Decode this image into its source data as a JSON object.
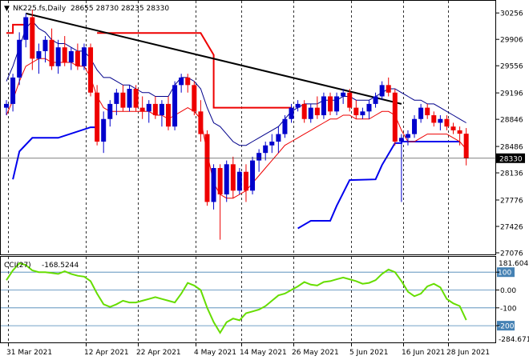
{
  "header": {
    "symbol": "NK225.fs,Daily",
    "ohlc_values": "28655 28730 28235 28330"
  },
  "indicator": {
    "label": "CCI(27)",
    "value": "-168.5244",
    "scale_top": "181.6041",
    "scale_bottom": "-284.6713"
  },
  "colors": {
    "bull_candle": "#0000cc",
    "bear_candle": "#ee0000",
    "upper_band": "#00008b",
    "lower_band": "#ee0000",
    "trendline": "#000000",
    "resistance": "#ee0000",
    "support": "#0000ee",
    "cci_line": "#66dd00",
    "price_tag_bg": "#000000"
  },
  "chart_data": [
    {
      "type": "candlestick",
      "title": "NK225.fs,Daily",
      "ylim": [
        27076,
        30396
      ],
      "y_ticks": [
        "30256",
        "29906",
        "29556",
        "29196",
        "28846",
        "28486",
        "28136",
        "27776",
        "27426",
        "27076"
      ],
      "x_tick_labels": [
        "31 Mar 2021",
        "12 Apr 2021",
        "22 Apr 2021",
        "4 May 2021",
        "14 May 2021",
        "26 May 2021",
        "5 Jun 2021",
        "16 Jun 2021",
        "28 Jun 2021"
      ],
      "last_price": "28330",
      "candles": [
        [
          29000,
          29100,
          28900,
          29050
        ],
        [
          29050,
          29450,
          28950,
          29400
        ],
        [
          29400,
          30000,
          29300,
          29900
        ],
        [
          29900,
          30250,
          29800,
          30200
        ],
        [
          30200,
          30300,
          29500,
          29650
        ],
        [
          29650,
          29850,
          29450,
          29750
        ],
        [
          29750,
          29950,
          29600,
          29900
        ],
        [
          29900,
          30050,
          29500,
          29550
        ],
        [
          29550,
          29900,
          29450,
          29800
        ],
        [
          29800,
          29950,
          29550,
          29600
        ],
        [
          29600,
          29800,
          29500,
          29750
        ],
        [
          29750,
          29850,
          29500,
          29550
        ],
        [
          29550,
          29850,
          29500,
          29800
        ],
        [
          29800,
          29850,
          29150,
          29200
        ],
        [
          29200,
          29300,
          28500,
          28550
        ],
        [
          28550,
          28950,
          28400,
          28850
        ],
        [
          28850,
          29100,
          28750,
          29050
        ],
        [
          29050,
          29250,
          28900,
          29200
        ],
        [
          29200,
          29300,
          28950,
          29000
        ],
        [
          29000,
          29300,
          28950,
          29250
        ],
        [
          29250,
          29300,
          28950,
          29000
        ],
        [
          29000,
          29150,
          28850,
          28950
        ],
        [
          28950,
          29100,
          28800,
          29050
        ],
        [
          29050,
          29150,
          28850,
          28900
        ],
        [
          28900,
          29100,
          28750,
          29050
        ],
        [
          29050,
          29150,
          28700,
          28750
        ],
        [
          28750,
          29350,
          28700,
          29300
        ],
        [
          29300,
          29450,
          29200,
          29400
        ],
        [
          29400,
          29450,
          29200,
          29300
        ],
        [
          29300,
          29350,
          28900,
          28950
        ],
        [
          28950,
          29100,
          28550,
          28650
        ],
        [
          28650,
          28700,
          27700,
          27750
        ],
        [
          27750,
          28250,
          27650,
          28200
        ],
        [
          28200,
          28250,
          27250,
          27850
        ],
        [
          27850,
          28300,
          27750,
          28250
        ],
        [
          28250,
          28350,
          27800,
          27900
        ],
        [
          27900,
          28200,
          27850,
          28150
        ],
        [
          28150,
          28250,
          27750,
          27900
        ],
        [
          27900,
          28350,
          27850,
          28300
        ],
        [
          28300,
          28450,
          28150,
          28400
        ],
        [
          28400,
          28550,
          28300,
          28500
        ],
        [
          28500,
          28650,
          28400,
          28550
        ],
        [
          28550,
          28750,
          28400,
          28650
        ],
        [
          28650,
          28900,
          28600,
          28850
        ],
        [
          28850,
          29050,
          28800,
          29000
        ],
        [
          29000,
          29100,
          28950,
          29050
        ],
        [
          29050,
          29100,
          28800,
          28850
        ],
        [
          28850,
          29050,
          28800,
          29000
        ],
        [
          29000,
          29150,
          28850,
          28900
        ],
        [
          28900,
          29200,
          28850,
          29150
        ],
        [
          29150,
          29200,
          28900,
          28950
        ],
        [
          28950,
          29200,
          28900,
          29150
        ],
        [
          29150,
          29250,
          29050,
          29200
        ],
        [
          29200,
          29250,
          28950,
          29000
        ],
        [
          29000,
          29100,
          28850,
          28900
        ],
        [
          28900,
          29000,
          28850,
          28950
        ],
        [
          28950,
          29100,
          28850,
          29050
        ],
        [
          29050,
          29200,
          29000,
          29150
        ],
        [
          29150,
          29350,
          29100,
          29300
        ],
        [
          29300,
          29400,
          29150,
          29200
        ],
        [
          29200,
          29250,
          28500,
          28550
        ],
        [
          28550,
          28650,
          27750,
          28600
        ],
        [
          28600,
          28700,
          28500,
          28650
        ],
        [
          28650,
          28900,
          28600,
          28850
        ],
        [
          28850,
          29050,
          28800,
          29000
        ],
        [
          29000,
          29050,
          28850,
          28900
        ],
        [
          28900,
          28950,
          28750,
          28800
        ],
        [
          28800,
          28900,
          28700,
          28850
        ],
        [
          28850,
          28900,
          28700,
          28750
        ],
        [
          28750,
          28800,
          28650,
          28700
        ],
        [
          28700,
          28750,
          28500,
          28655
        ],
        [
          28655,
          28730,
          28235,
          28330
        ]
      ],
      "upper_band": [
        29350,
        29550,
        29800,
        30050,
        30150,
        30050,
        30000,
        29900,
        29850,
        29850,
        29800,
        29750,
        29750,
        29650,
        29500,
        29400,
        29400,
        29350,
        29300,
        29300,
        29250,
        29200,
        29200,
        29150,
        29150,
        29150,
        29300,
        29400,
        29400,
        29350,
        29250,
        29000,
        28800,
        28750,
        28650,
        28550,
        28500,
        28500,
        28550,
        28600,
        28650,
        28700,
        28750,
        28850,
        28950,
        29000,
        29050,
        29050,
        29050,
        29100,
        29100,
        29100,
        29150,
        29150,
        29100,
        29100,
        29100,
        29150,
        29200,
        29250,
        29250,
        29200,
        29150,
        29100,
        29100,
        29050,
        29050,
        29000,
        28950,
        28900,
        28850,
        28800
      ],
      "lower_band": [
        28900,
        29100,
        29350,
        29550,
        29600,
        29650,
        29650,
        29600,
        29600,
        29600,
        29600,
        29550,
        29550,
        29400,
        29150,
        29000,
        28950,
        28950,
        28950,
        28950,
        28950,
        28950,
        28950,
        28900,
        28900,
        28850,
        28900,
        28950,
        29000,
        28950,
        28850,
        28400,
        28000,
        27850,
        27800,
        27800,
        27850,
        27900,
        28000,
        28100,
        28200,
        28300,
        28400,
        28500,
        28550,
        28600,
        28650,
        28700,
        28750,
        28800,
        28850,
        28850,
        28900,
        28900,
        28850,
        28850,
        28850,
        28900,
        28950,
        28950,
        28900,
        28700,
        28550,
        28550,
        28600,
        28650,
        28650,
        28650,
        28650,
        28600,
        28550,
        28450
      ],
      "trendline": [
        {
          "x": 3,
          "y": 30250
        },
        {
          "x": 61,
          "y": 29050
        }
      ],
      "resistance_line": [
        [
          [
            0,
            29990
          ],
          [
            1,
            29990
          ],
          [
            1,
            30100
          ],
          [
            3,
            30100
          ]
        ],
        [
          [
            14,
            29990
          ],
          [
            30,
            29990
          ],
          [
            32,
            29700
          ],
          [
            32,
            29000
          ],
          [
            44,
            29000
          ]
        ]
      ],
      "support_line": [
        [
          [
            1,
            28050
          ],
          [
            2,
            28420
          ],
          [
            4,
            28600
          ],
          [
            8,
            28600
          ],
          [
            13,
            28740
          ],
          [
            14,
            28740
          ]
        ],
        [
          [
            45,
            27400
          ],
          [
            47,
            27500
          ],
          [
            50,
            27500
          ],
          [
            51,
            27700
          ],
          [
            53,
            28040
          ],
          [
            57,
            28050
          ],
          [
            58,
            28240
          ],
          [
            60,
            28530
          ],
          [
            61,
            28530
          ],
          [
            61,
            28550
          ],
          [
            70,
            28550
          ]
        ]
      ]
    },
    {
      "type": "line",
      "title": "CCI(27)",
      "ylim": [
        -284.6713,
        181.6041
      ],
      "y_ticks": [
        "100",
        "0.00",
        "-100",
        "-200"
      ],
      "values": [
        55,
        110,
        150,
        140,
        110,
        100,
        100,
        95,
        90,
        105,
        90,
        80,
        75,
        50,
        -20,
        -80,
        -95,
        -80,
        -60,
        -70,
        -70,
        -60,
        -50,
        -40,
        -50,
        -60,
        -70,
        -20,
        40,
        25,
        0,
        -100,
        -180,
        -240,
        -180,
        -160,
        -170,
        -130,
        -120,
        -110,
        -90,
        -60,
        -30,
        -20,
        0,
        20,
        45,
        30,
        25,
        45,
        50,
        60,
        70,
        60,
        50,
        35,
        40,
        55,
        90,
        115,
        100,
        50,
        -10,
        -35,
        -20,
        20,
        35,
        15,
        -50,
        -75,
        -90,
        -168.5244
      ]
    }
  ]
}
